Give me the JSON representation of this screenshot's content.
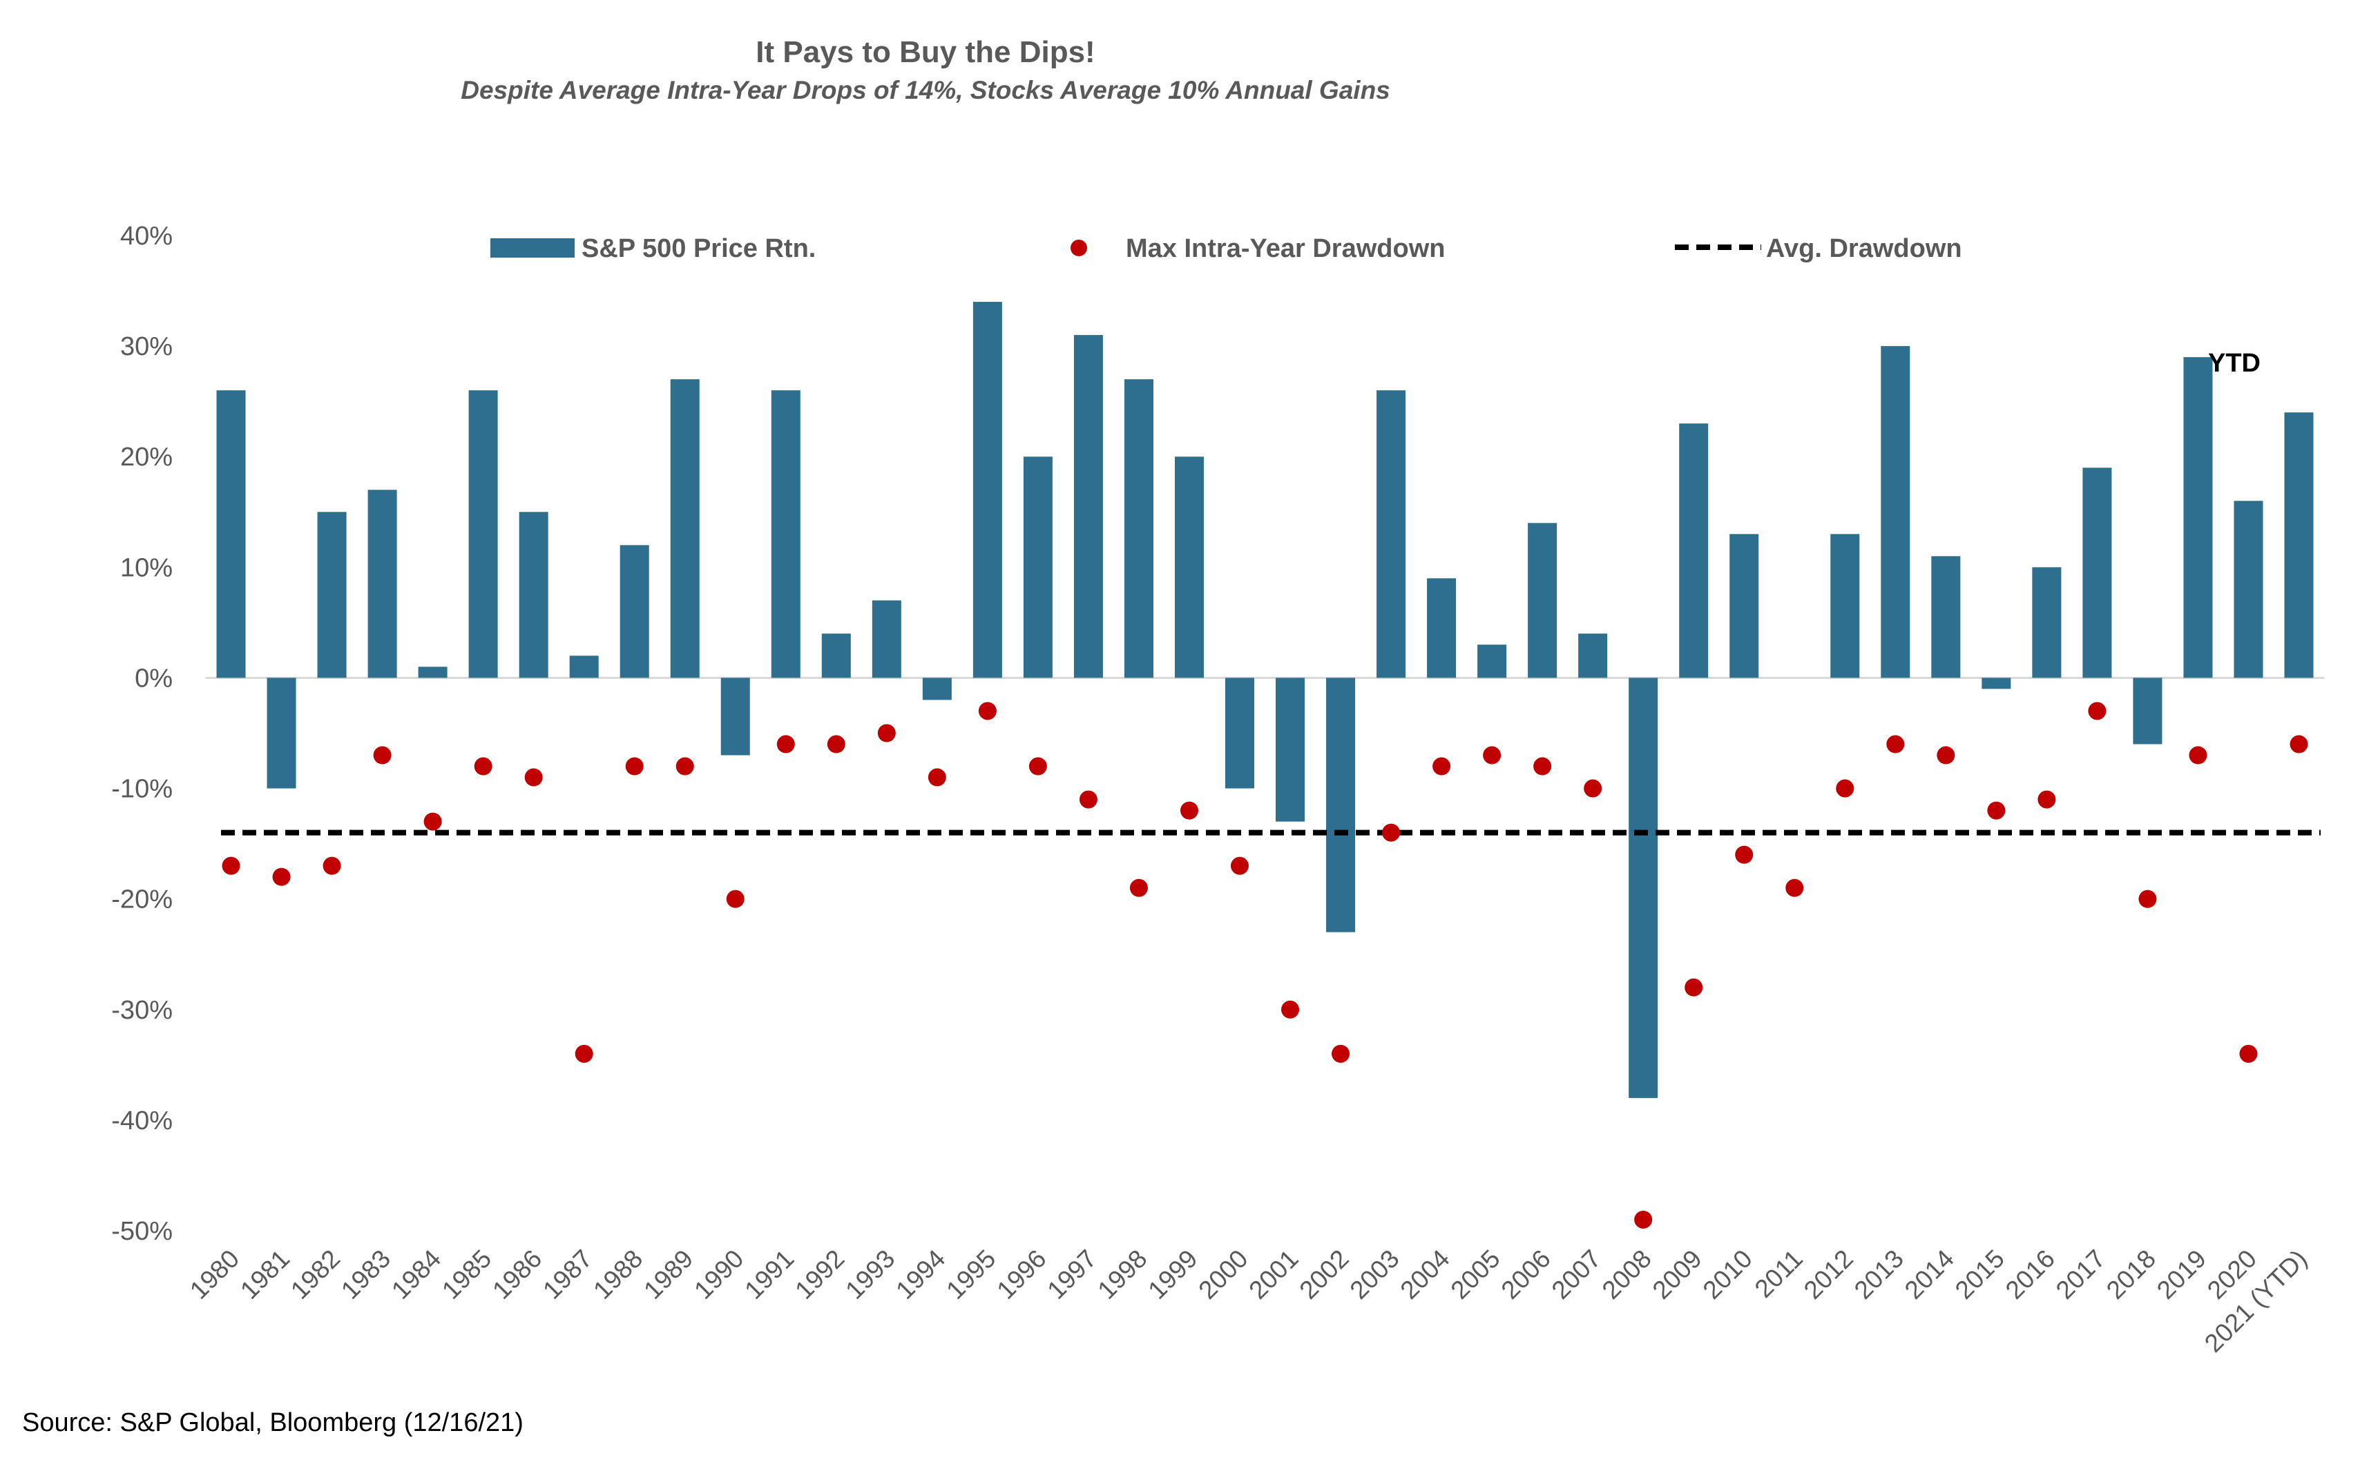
{
  "chart_data": {
    "type": "bar",
    "title": "It Pays to Buy the Dips!",
    "subtitle": "Despite Average Intra-Year Drops of 14%, Stocks Average 10% Annual Gains",
    "categories": [
      "1980",
      "1981",
      "1982",
      "1983",
      "1984",
      "1985",
      "1986",
      "1987",
      "1988",
      "1989",
      "1990",
      "1991",
      "1992",
      "1993",
      "1994",
      "1995",
      "1996",
      "1997",
      "1998",
      "1999",
      "2000",
      "2001",
      "2002",
      "2003",
      "2004",
      "2005",
      "2006",
      "2007",
      "2008",
      "2009",
      "2010",
      "2011",
      "2012",
      "2013",
      "2014",
      "2015",
      "2016",
      "2017",
      "2018",
      "2019",
      "2020",
      "2021 (YTD)"
    ],
    "series": [
      {
        "name": "S&P 500 Price Rtn.",
        "kind": "bar",
        "color": "#2E6E8E",
        "values": [
          26,
          -10,
          15,
          17,
          1,
          26,
          15,
          2,
          12,
          27,
          -7,
          26,
          4,
          7,
          -2,
          34,
          20,
          31,
          27,
          20,
          -10,
          -13,
          -23,
          26,
          9,
          3,
          14,
          4,
          -38,
          23,
          13,
          0,
          13,
          30,
          11,
          -1,
          10,
          19,
          -6,
          29,
          16,
          24
        ]
      },
      {
        "name": "Max Intra-Year Drawdown",
        "kind": "scatter",
        "color": "#C00000",
        "values": [
          -17,
          -18,
          -17,
          -7,
          -13,
          -8,
          -9,
          -34,
          -8,
          -8,
          -20,
          -6,
          -6,
          -5,
          -9,
          -3,
          -8,
          -11,
          -19,
          -12,
          -17,
          -30,
          -34,
          -14,
          -8,
          -7,
          -8,
          -10,
          -49,
          -28,
          -16,
          -19,
          -10,
          -6,
          -7,
          -12,
          -11,
          -3,
          -20,
          -7,
          -34,
          -6
        ]
      },
      {
        "name": "Avg. Drawdown",
        "kind": "line",
        "color": "#000000",
        "value": -14
      }
    ],
    "ylim": [
      -50,
      40
    ],
    "yticks": [
      40,
      30,
      20,
      10,
      0,
      -10,
      -20,
      -30,
      -40,
      -50
    ],
    "ytick_labels": [
      "40%",
      "30%",
      "20%",
      "10%",
      "0%",
      "-10%",
      "-20%",
      "-30%",
      "-40%",
      "-50%"
    ],
    "xlabel": "",
    "ylabel": "",
    "grid": false,
    "legend_position": "top",
    "annotation": "YTD"
  },
  "source": "Source: S&P Global, Bloomberg (12/16/21)"
}
